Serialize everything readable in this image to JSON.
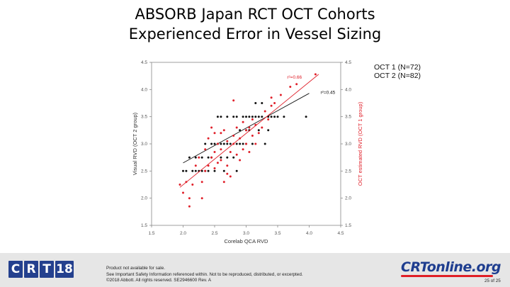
{
  "slide": {
    "title_lines": [
      "ABSORB Japan RCT OCT Cohorts",
      "Experienced Error in Vessel Sizing"
    ],
    "legend_lines": [
      "OCT 1 (N=72)",
      "OCT 2 (N=82)"
    ],
    "footer": {
      "logo": "CRT18",
      "logo_letters": [
        "C",
        "R",
        "T",
        "18"
      ],
      "disclaimer_lines": [
        "Product not available for sale.",
        "See Important Safety Information referenced within. Not to be reproduced, distributed, or excerpted.",
        "©2018 Abbott. All rights reserved. SE2946600 Rev. A"
      ],
      "brand": "CRTonline.org",
      "page": "25 of 25"
    },
    "colors": {
      "black_series": "#111111",
      "red_series": "#e0202a",
      "logo_blue": "#24408e",
      "footer_bg": "#e6e6e6"
    }
  },
  "chart_data": {
    "type": "scatter",
    "xlabel": "Corelab QCA RVD",
    "ylabel_left": "Visual RVD (OCT 2 group)",
    "ylabel_right": "OCT estimated RVD (OCT 1 group)",
    "xlim": [
      1.5,
      4.5
    ],
    "ylim": [
      1.5,
      4.5
    ],
    "x_ticks": [
      1.5,
      2.0,
      2.5,
      3.0,
      3.5,
      4.0,
      4.5
    ],
    "y_ticks": [
      1.5,
      2.0,
      2.5,
      3.0,
      3.5,
      4.0,
      4.5
    ],
    "x_tick_labels": [
      "1.5",
      "2.0",
      "2.5",
      "3.0",
      "3.5",
      "4.0",
      "4.5"
    ],
    "y_tick_labels": [
      "1.5",
      "2.0",
      "2.5",
      "3.0",
      "3.5",
      "4.0",
      "4.5"
    ],
    "grid": false,
    "series": [
      {
        "color": "#111111",
        "annotation": "r²=0.45",
        "fit": [
          [
            2.0,
            2.65
          ],
          [
            4.0,
            3.93
          ]
        ],
        "points": [
          [
            2.0,
            2.5
          ],
          [
            2.05,
            2.5
          ],
          [
            2.1,
            2.75
          ],
          [
            2.15,
            2.5
          ],
          [
            2.2,
            2.5
          ],
          [
            2.2,
            2.75
          ],
          [
            2.25,
            2.5
          ],
          [
            2.3,
            2.75
          ],
          [
            2.3,
            2.5
          ],
          [
            2.35,
            3.0
          ],
          [
            2.35,
            2.5
          ],
          [
            2.4,
            2.75
          ],
          [
            2.4,
            2.5
          ],
          [
            2.45,
            3.0
          ],
          [
            2.45,
            2.75
          ],
          [
            2.5,
            3.0
          ],
          [
            2.5,
            2.5
          ],
          [
            2.55,
            3.0
          ],
          [
            2.55,
            3.5
          ],
          [
            2.6,
            3.0
          ],
          [
            2.6,
            2.75
          ],
          [
            2.6,
            3.5
          ],
          [
            2.65,
            2.5
          ],
          [
            2.65,
            3.0
          ],
          [
            2.7,
            3.0
          ],
          [
            2.7,
            3.5
          ],
          [
            2.7,
            2.75
          ],
          [
            2.75,
            3.0
          ],
          [
            2.8,
            2.75
          ],
          [
            2.8,
            3.5
          ],
          [
            2.85,
            3.0
          ],
          [
            2.85,
            3.5
          ],
          [
            2.9,
            3.0
          ],
          [
            2.9,
            3.25
          ],
          [
            2.95,
            3.5
          ],
          [
            2.95,
            3.0
          ],
          [
            3.0,
            3.5
          ],
          [
            3.0,
            3.25
          ],
          [
            3.0,
            3.0
          ],
          [
            3.05,
            3.5
          ],
          [
            3.05,
            3.25
          ],
          [
            3.1,
            3.5
          ],
          [
            3.1,
            3.0
          ],
          [
            3.15,
            3.5
          ],
          [
            3.15,
            3.75
          ],
          [
            3.2,
            3.5
          ],
          [
            3.2,
            3.25
          ],
          [
            3.25,
            3.5
          ],
          [
            3.25,
            3.75
          ],
          [
            3.3,
            3.0
          ],
          [
            3.35,
            3.5
          ],
          [
            3.35,
            3.25
          ],
          [
            3.4,
            3.5
          ],
          [
            3.45,
            3.5
          ],
          [
            3.5,
            3.5
          ],
          [
            3.6,
            3.5
          ],
          [
            3.95,
            3.5
          ],
          [
            2.85,
            2.5
          ]
        ]
      },
      {
        "color": "#e0202a",
        "annotation": "r²=0.66",
        "fit": [
          [
            1.95,
            2.2
          ],
          [
            4.15,
            4.28
          ]
        ],
        "points": [
          [
            1.95,
            2.25
          ],
          [
            2.0,
            2.1
          ],
          [
            2.05,
            2.3
          ],
          [
            2.1,
            2.0
          ],
          [
            2.1,
            1.85
          ],
          [
            2.15,
            2.25
          ],
          [
            2.2,
            2.6
          ],
          [
            2.25,
            2.75
          ],
          [
            2.3,
            2.3
          ],
          [
            2.3,
            2.0
          ],
          [
            2.35,
            2.5
          ],
          [
            2.35,
            2.9
          ],
          [
            2.4,
            2.6
          ],
          [
            2.4,
            3.1
          ],
          [
            2.45,
            2.75
          ],
          [
            2.45,
            3.3
          ],
          [
            2.5,
            2.55
          ],
          [
            2.5,
            2.85
          ],
          [
            2.55,
            2.65
          ],
          [
            2.55,
            3.0
          ],
          [
            2.6,
            2.7
          ],
          [
            2.6,
            2.9
          ],
          [
            2.65,
            2.3
          ],
          [
            2.65,
            3.25
          ],
          [
            2.7,
            2.6
          ],
          [
            2.7,
            3.05
          ],
          [
            2.75,
            2.4
          ],
          [
            2.75,
            2.85
          ],
          [
            2.8,
            3.0
          ],
          [
            2.8,
            3.15
          ],
          [
            2.85,
            2.8
          ],
          [
            2.85,
            3.3
          ],
          [
            2.9,
            2.7
          ],
          [
            2.9,
            3.1
          ],
          [
            2.95,
            2.9
          ],
          [
            2.95,
            3.4
          ],
          [
            3.0,
            3.0
          ],
          [
            3.0,
            3.25
          ],
          [
            3.05,
            2.85
          ],
          [
            3.05,
            3.3
          ],
          [
            3.1,
            3.15
          ],
          [
            3.1,
            3.45
          ],
          [
            3.15,
            3.0
          ],
          [
            3.15,
            3.35
          ],
          [
            3.2,
            3.2
          ],
          [
            3.25,
            3.3
          ],
          [
            3.3,
            3.6
          ],
          [
            3.35,
            3.45
          ],
          [
            3.4,
            3.7
          ],
          [
            3.45,
            3.75
          ],
          [
            3.55,
            3.9
          ],
          [
            3.7,
            4.05
          ],
          [
            3.8,
            4.1
          ],
          [
            4.1,
            4.28
          ],
          [
            2.8,
            3.8
          ],
          [
            2.6,
            3.2
          ],
          [
            2.5,
            3.2
          ],
          [
            2.7,
            2.45
          ],
          [
            3.4,
            3.85
          ]
        ]
      }
    ]
  }
}
